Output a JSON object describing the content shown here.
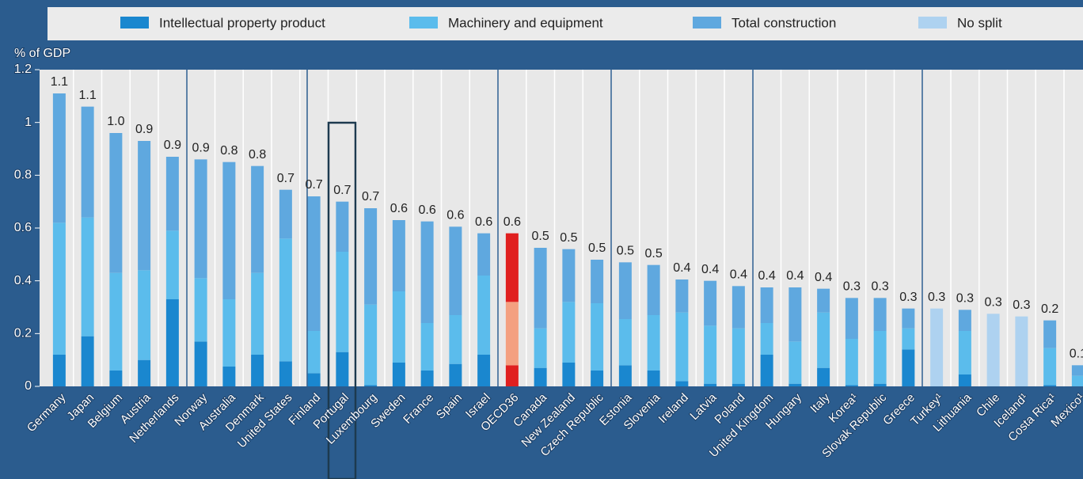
{
  "chart_data": {
    "type": "stacked_bar",
    "y_axis_title": "% of GDP",
    "categories": [
      "Germany",
      "Japan",
      "Belgium",
      "Austria",
      "Netherlands",
      "Norway",
      "Australia",
      "Denmark",
      "United States",
      "Finland",
      "Portugal",
      "Luxembourg",
      "Sweden",
      "France",
      "Spain",
      "Israel",
      "OECD36",
      "Canada",
      "New Zealand",
      "Czech Republic",
      "Estonia",
      "Slovenia",
      "Ireland",
      "Latvia",
      "Poland",
      "United Kingdom",
      "Hungary",
      "Italy",
      "Korea¹",
      "Slovak Republic",
      "Greece",
      "Turkey¹",
      "Lithuania",
      "Chile",
      "Iceland¹",
      "Costa Rica¹",
      "Mexico¹"
    ],
    "series": [
      {
        "name": "Intellectual property product",
        "color": "#1a87cf",
        "values": [
          0.12,
          0.19,
          0.06,
          0.1,
          0.33,
          0.17,
          0.075,
          0.12,
          0.095,
          0.05,
          0.13,
          0.005,
          0.09,
          0.06,
          0.085,
          0.12,
          0.08,
          0.07,
          0.09,
          0.06,
          0.08,
          0.06,
          0.02,
          0.01,
          0.01,
          0.12,
          0.01,
          0.07,
          0.005,
          0.01,
          0.14,
          null,
          0.045,
          null,
          null,
          0.005,
          0.0
        ]
      },
      {
        "name": "Machinery and equipment",
        "color": "#5bbcec",
        "values": [
          0.5,
          0.45,
          0.37,
          0.34,
          0.26,
          0.24,
          0.255,
          0.31,
          0.465,
          0.16,
          0.38,
          0.305,
          0.27,
          0.18,
          0.185,
          0.3,
          0.24,
          0.15,
          0.23,
          0.255,
          0.175,
          0.21,
          0.26,
          0.22,
          0.21,
          0.12,
          0.16,
          0.21,
          0.175,
          0.2,
          0.08,
          null,
          0.165,
          null,
          null,
          0.14,
          0.04
        ]
      },
      {
        "name": "Total construction",
        "color": "#5fa8df",
        "values": [
          0.49,
          0.42,
          0.53,
          0.49,
          0.28,
          0.45,
          0.52,
          0.405,
          0.185,
          0.51,
          0.19,
          0.365,
          0.27,
          0.385,
          0.335,
          0.16,
          0.26,
          0.305,
          0.2,
          0.165,
          0.215,
          0.19,
          0.125,
          0.17,
          0.16,
          0.135,
          0.205,
          0.09,
          0.155,
          0.125,
          0.075,
          null,
          0.08,
          null,
          null,
          0.105,
          0.04
        ]
      },
      {
        "name": "No split",
        "color": "#aed2f0",
        "values": [
          null,
          null,
          null,
          null,
          null,
          null,
          null,
          null,
          null,
          null,
          null,
          null,
          null,
          null,
          null,
          null,
          null,
          null,
          null,
          null,
          null,
          null,
          null,
          null,
          null,
          null,
          null,
          null,
          null,
          null,
          null,
          0.295,
          null,
          0.275,
          0.265,
          null,
          null
        ]
      }
    ],
    "total_labels": [
      "1.1",
      "1.1",
      "1.0",
      "0.9",
      "0.9",
      "0.9",
      "0.8",
      "0.8",
      "0.7",
      "0.7",
      "0.7",
      "0.7",
      "0.6",
      "0.6",
      "0.6",
      "0.6",
      "0.6",
      "0.5",
      "0.5",
      "0.5",
      "0.5",
      "0.5",
      "0.4",
      "0.4",
      "0.4",
      "0.4",
      "0.4",
      "0.4",
      "0.3",
      "0.3",
      "0.3",
      "0.3",
      "0.3",
      "0.3",
      "0.3",
      "0.2",
      "0.1"
    ],
    "highlight": {
      "index": 16,
      "colors": [
        "#e0201f",
        "#f4a080",
        "#e0201f"
      ]
    },
    "ylim": [
      0,
      1.2
    ],
    "yticks": [
      0,
      0.2,
      0.4,
      0.6,
      0.8,
      1,
      1.2
    ],
    "grid": true,
    "legend": "top"
  }
}
